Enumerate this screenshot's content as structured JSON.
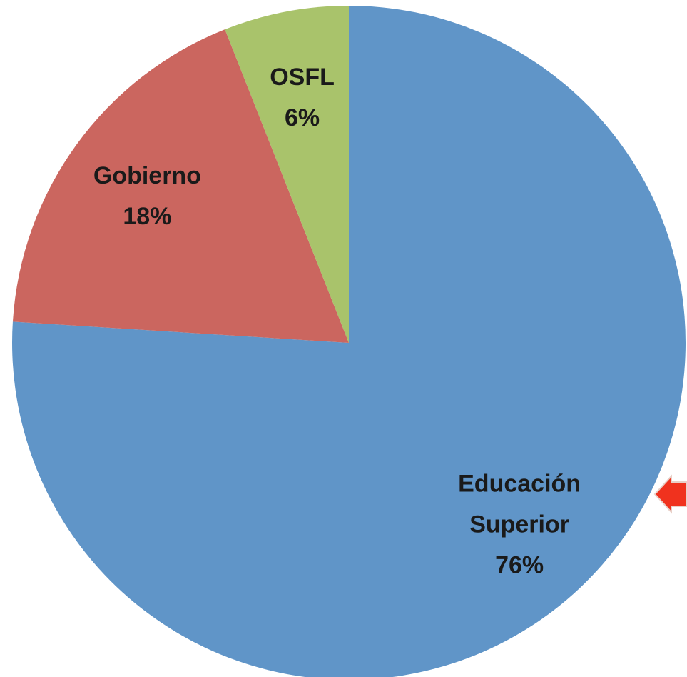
{
  "chart_data": {
    "type": "pie",
    "categories": [
      "Educación Superior",
      "Gobierno",
      "OSFL"
    ],
    "values": [
      76,
      18,
      6
    ],
    "value_labels": [
      "76%",
      "18%",
      "6%"
    ],
    "colors": [
      "#6095c8",
      "#cb665f",
      "#a9c36b"
    ]
  }
}
